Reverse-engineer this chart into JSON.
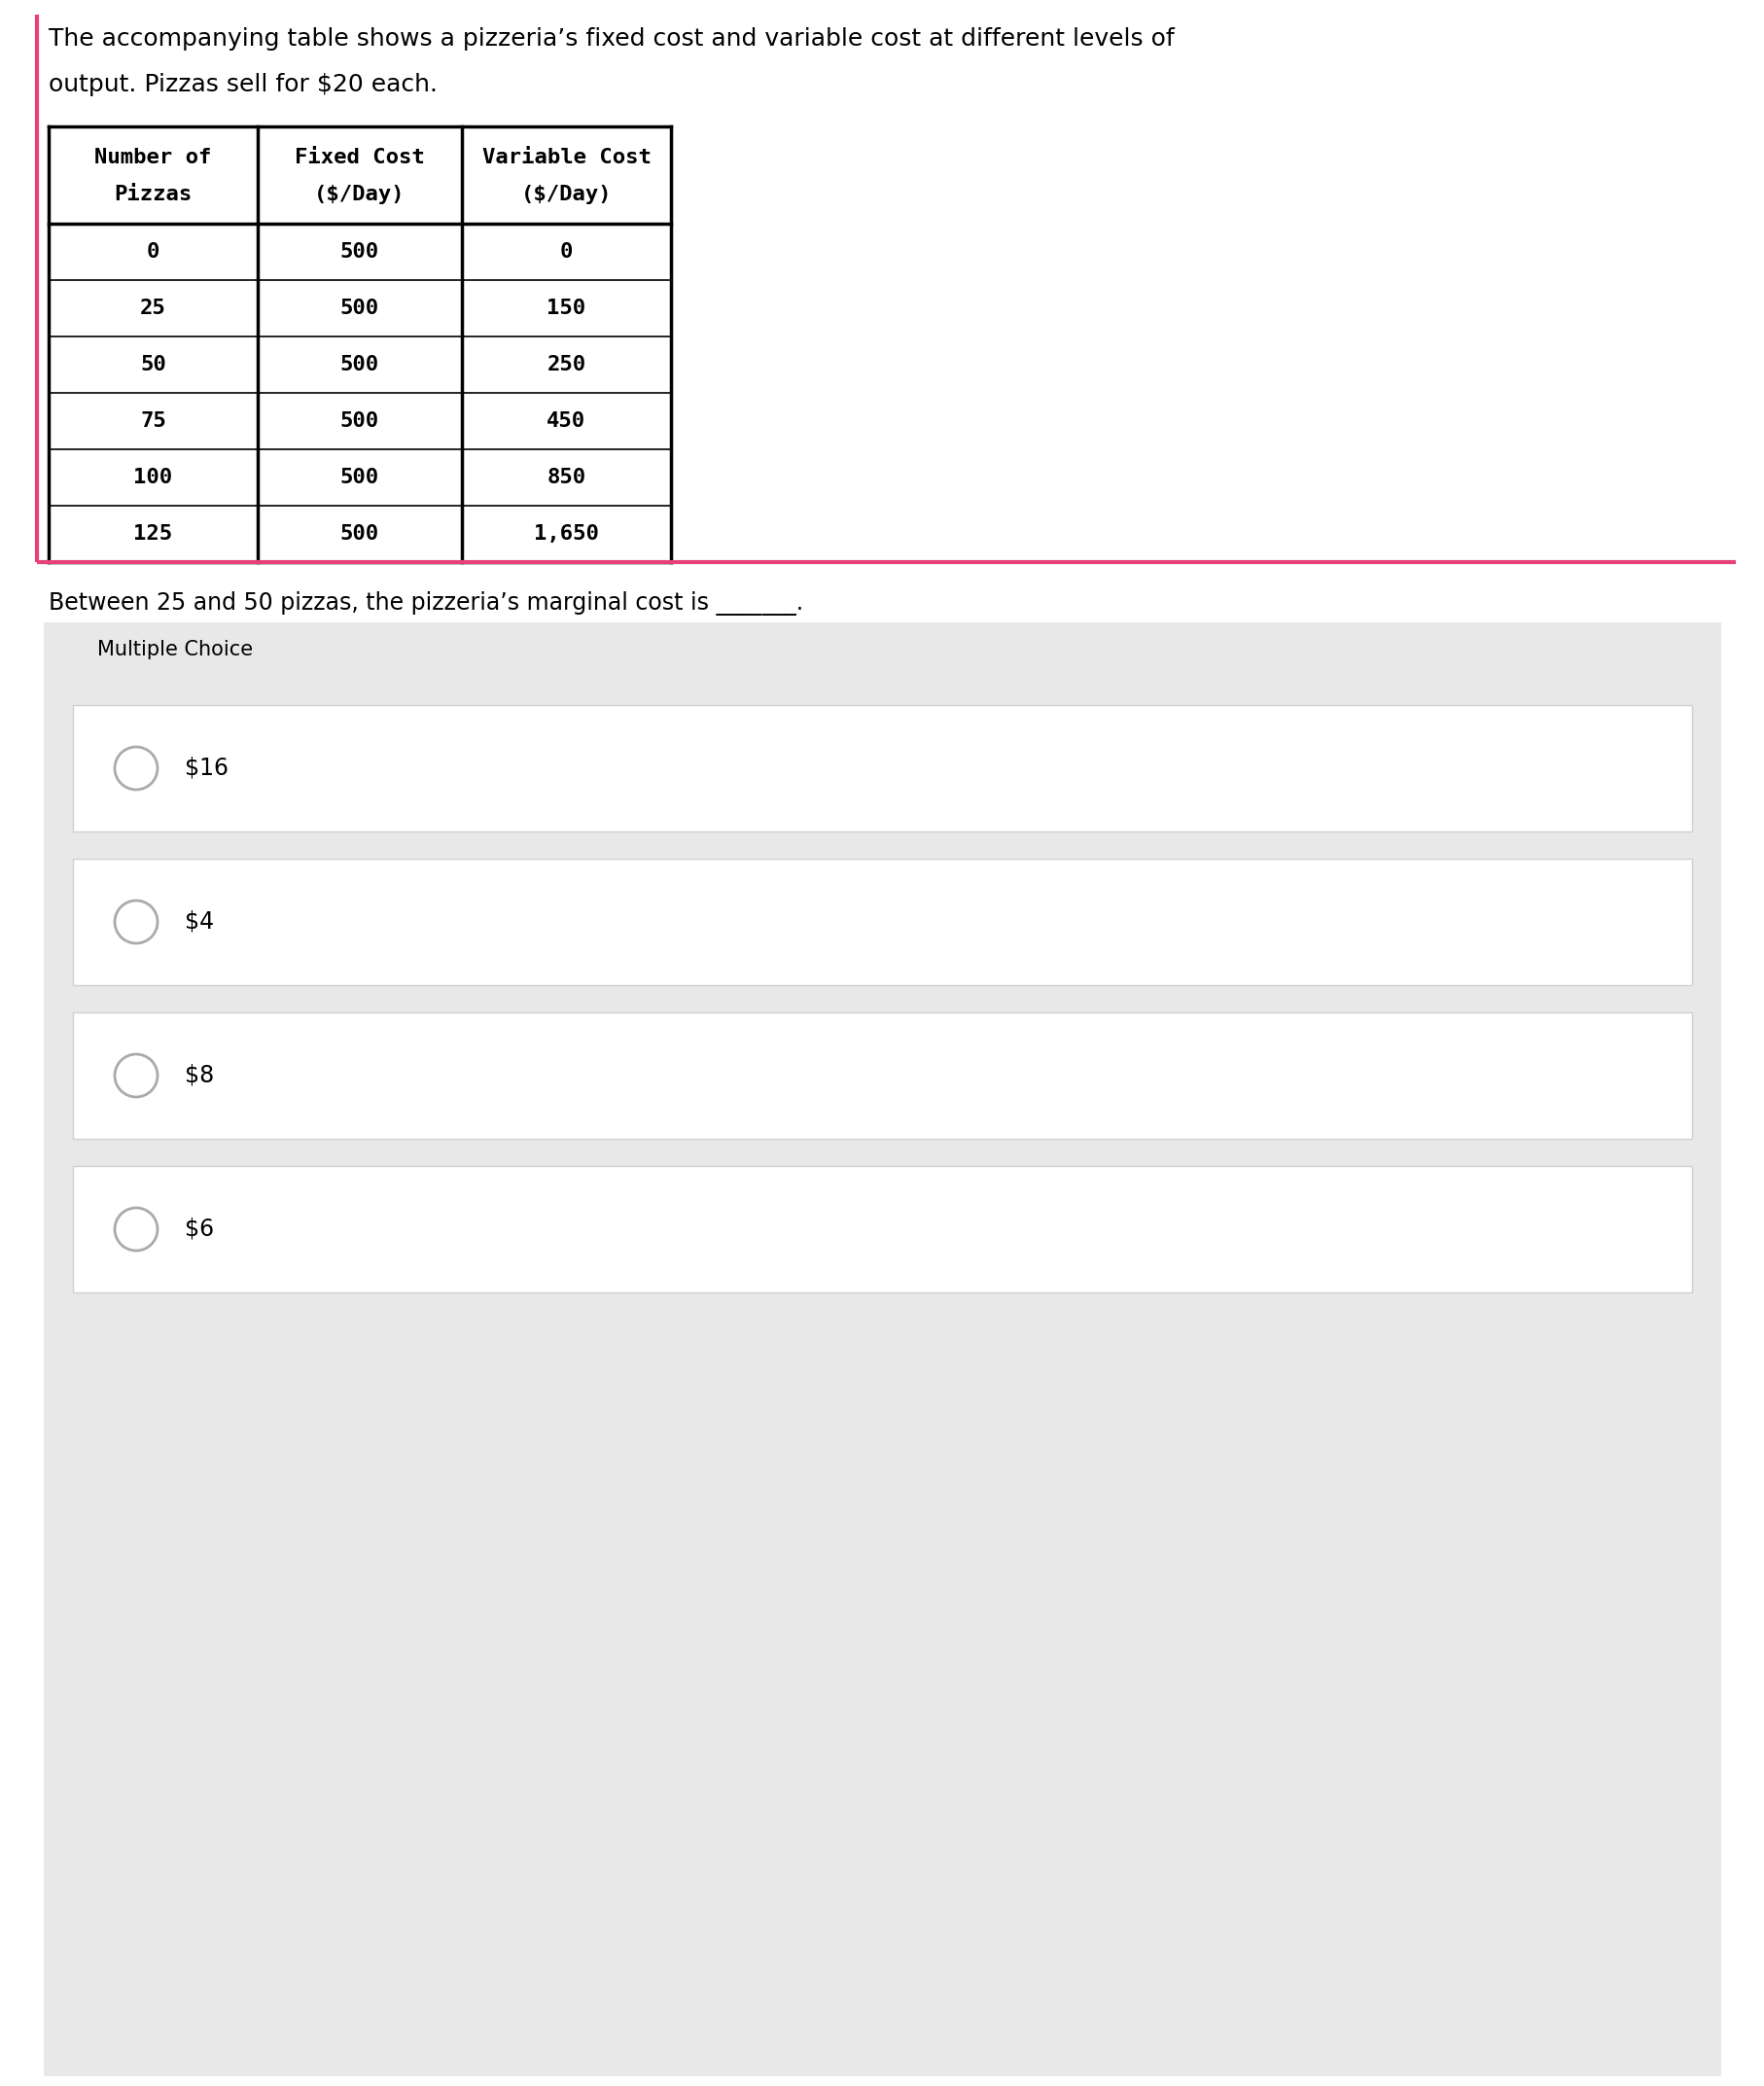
{
  "intro_text_line1": "The accompanying table shows a pizzeria’s fixed cost and variable cost at different levels of",
  "intro_text_line2": "output. Pizzas sell for $20 each.",
  "table_headers_line1": [
    "Number of",
    "Fixed Cost",
    "Variable Cost"
  ],
  "table_headers_line2": [
    "Pizzas",
    "($/Day)",
    "($/Day)"
  ],
  "table_rows": [
    [
      "0",
      "500",
      "0"
    ],
    [
      "25",
      "500",
      "150"
    ],
    [
      "50",
      "500",
      "250"
    ],
    [
      "75",
      "500",
      "450"
    ],
    [
      "100",
      "500",
      "850"
    ],
    [
      "125",
      "500",
      "1,650"
    ]
  ],
  "question_text": "Between 25 and 50 pizzas, the pizzeria’s marginal cost is _______.",
  "mc_label": "Multiple Choice",
  "choices": [
    "$16",
    "$4",
    "$8",
    "$6"
  ],
  "bg_color": "#ffffff",
  "table_border_color": "#000000",
  "choice_bg": "#ffffff",
  "left_border_color": "#e8407a",
  "choice_border_color": "#d0d0d0",
  "circle_color": "#aaaaaa",
  "text_color": "#000000",
  "mc_section_bg": "#e8e8e8",
  "choice_section_bg": "#f0f0f0"
}
